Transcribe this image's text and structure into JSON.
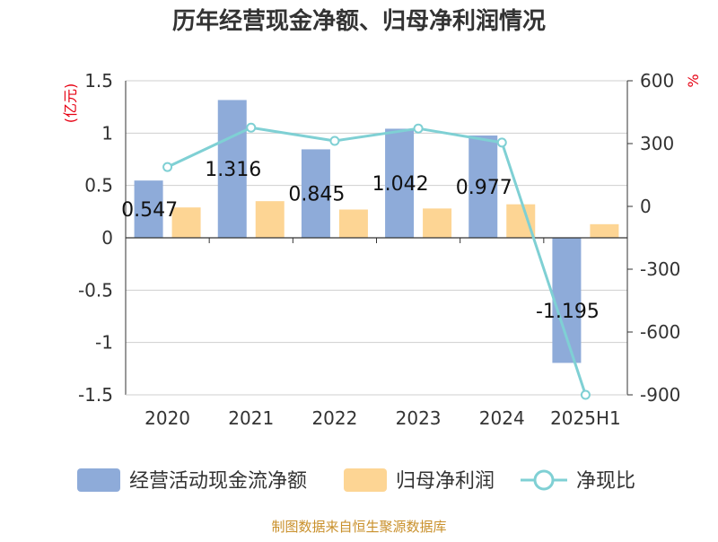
{
  "title": "历年经营现金净额、归母净利润情况",
  "source": "制图数据来自恒生聚源数据库",
  "colors": {
    "cash_flow": "#8eabd9",
    "net_profit": "#fdd594",
    "ratio": "#7fd0d4",
    "unit_text": "#e60012",
    "source_text": "#c9902b"
  },
  "chart_data": {
    "type": "bar",
    "title": "历年经营现金净额、归母净利润情况",
    "categories": [
      "2020",
      "2021",
      "2022",
      "2023",
      "2024",
      "2025H1"
    ],
    "y_left": {
      "unit": "(亿元)",
      "range": [
        -1.5,
        1.5
      ],
      "ticks": [
        "1.5",
        "1",
        "0.5",
        "0",
        "-0.5",
        "-1",
        "-1.5"
      ],
      "tick_values": [
        1.5,
        1,
        0.5,
        0,
        -0.5,
        -1,
        -1.5
      ]
    },
    "y_right": {
      "unit": "%",
      "range": [
        -900,
        600
      ],
      "ticks": [
        "600",
        "300",
        "0",
        "-300",
        "-600",
        "-900"
      ],
      "tick_values": [
        600,
        300,
        0,
        -300,
        -600,
        -900
      ]
    },
    "grid": true,
    "legend_position": "bottom",
    "series": [
      {
        "name": "经营活动现金流净额",
        "type": "bar",
        "axis": "left",
        "values": [
          0.547,
          1.316,
          0.845,
          1.042,
          0.977,
          -1.195
        ],
        "labels": [
          "0.547",
          "1.316",
          "0.845",
          "1.042",
          "0.977",
          "-1.195"
        ]
      },
      {
        "name": "归母净利润",
        "type": "bar",
        "axis": "left",
        "values": [
          0.29,
          0.35,
          0.27,
          0.28,
          0.32,
          0.13
        ]
      },
      {
        "name": "净现比",
        "type": "line",
        "axis": "right",
        "values": [
          188,
          376,
          313,
          372,
          305,
          -900
        ]
      }
    ]
  }
}
